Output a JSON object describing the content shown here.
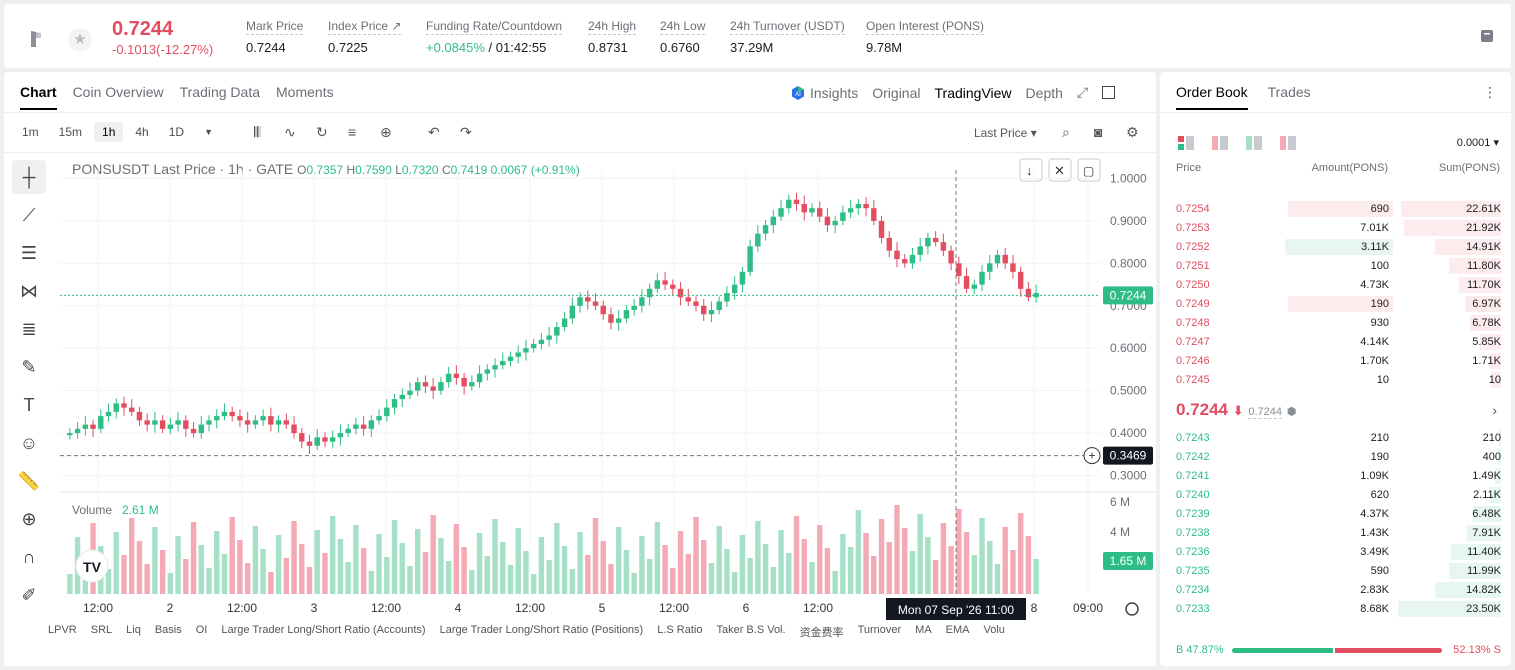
{
  "ticker": {
    "last_price": "0.7244",
    "change": "-0.1013(-12.27%)",
    "stats": [
      {
        "label": "Mark Price",
        "value": "0.7244"
      },
      {
        "label": "Index Price ↗",
        "value": "0.7225"
      },
      {
        "label": "Funding Rate/Countdown",
        "value_green": "+0.0845%",
        "value": " / 01:42:55"
      },
      {
        "label": "24h High",
        "value": "0.8731"
      },
      {
        "label": "24h Low",
        "value": "0.6760"
      },
      {
        "label": "24h Turnover (USDT)",
        "value": "37.29M"
      },
      {
        "label": "Open Interest (PONS)",
        "value": "9.78M"
      }
    ]
  },
  "chart_tabs": [
    "Chart",
    "Coin Overview",
    "Trading Data",
    "Moments"
  ],
  "view_tabs": {
    "insights": "Insights",
    "original": "Original",
    "tradingview": "TradingView",
    "depth": "Depth"
  },
  "timeframes": [
    "1m",
    "15m",
    "1h",
    "4h",
    "1D"
  ],
  "last_price_select": "Last Price",
  "legend": {
    "symbol": "PONSUSDT Last Price · 1h · GATE",
    "o_label": "O",
    "o": "0.7357",
    "h_label": "H",
    "h": "0.7590",
    "l_label": "L",
    "l": "0.7320",
    "c_label": "C",
    "c": "0.7419",
    "chg": "0.0067 (+0.91%)"
  },
  "volume_legend": {
    "label": "Volume",
    "value": "2.61 M"
  },
  "price_tag": "0.7244",
  "crosshair_tag": "0.3469",
  "volume_tag": "1.65 M",
  "crosshair_time": "Mon 07 Sep '26   11:00",
  "bottom_indicators": [
    "LPVR",
    "SRL",
    "Liq",
    "Basis",
    "OI",
    "Large Trader Long/Short Ratio (Accounts)",
    "Large Trader Long/Short Ratio (Positions)",
    "L.S Ratio",
    "Taker B.S Vol.",
    "资金费率",
    "Turnover",
    "MA",
    "EMA",
    "Volu"
  ],
  "chart_data": {
    "type": "candlestick",
    "y_ticks": [
      "1.0000",
      "0.9000",
      "0.8000",
      "0.7000",
      "0.6000",
      "0.5000",
      "0.4000",
      "0.3000"
    ],
    "y_range": [
      0.28,
      1.02
    ],
    "vol_ticks": [
      "6 M",
      "4 M"
    ],
    "x_ticks": [
      "12:00",
      "2",
      "12:00",
      "3",
      "12:00",
      "4",
      "12:00",
      "5",
      "12:00",
      "6",
      "12:00",
      "8",
      "09:00"
    ],
    "closes": [
      0.4,
      0.41,
      0.42,
      0.41,
      0.44,
      0.45,
      0.47,
      0.46,
      0.45,
      0.43,
      0.42,
      0.43,
      0.41,
      0.42,
      0.43,
      0.41,
      0.4,
      0.42,
      0.43,
      0.44,
      0.45,
      0.44,
      0.43,
      0.42,
      0.43,
      0.44,
      0.42,
      0.43,
      0.42,
      0.4,
      0.38,
      0.37,
      0.39,
      0.38,
      0.39,
      0.4,
      0.41,
      0.42,
      0.41,
      0.43,
      0.44,
      0.46,
      0.48,
      0.49,
      0.5,
      0.52,
      0.51,
      0.5,
      0.52,
      0.54,
      0.53,
      0.51,
      0.52,
      0.54,
      0.55,
      0.56,
      0.57,
      0.58,
      0.59,
      0.6,
      0.61,
      0.62,
      0.63,
      0.65,
      0.67,
      0.7,
      0.72,
      0.71,
      0.7,
      0.68,
      0.66,
      0.67,
      0.69,
      0.7,
      0.72,
      0.74,
      0.76,
      0.75,
      0.74,
      0.72,
      0.71,
      0.7,
      0.68,
      0.69,
      0.71,
      0.73,
      0.75,
      0.78,
      0.84,
      0.87,
      0.89,
      0.91,
      0.93,
      0.95,
      0.94,
      0.92,
      0.93,
      0.91,
      0.89,
      0.9,
      0.92,
      0.93,
      0.94,
      0.93,
      0.9,
      0.86,
      0.83,
      0.81,
      0.8,
      0.82,
      0.84,
      0.86,
      0.85,
      0.83,
      0.8,
      0.77,
      0.74,
      0.75,
      0.78,
      0.8,
      0.82,
      0.8,
      0.78,
      0.74,
      0.72,
      0.73
    ]
  },
  "order_book": {
    "tabs": [
      "Order Book",
      "Trades"
    ],
    "precision": "0.0001",
    "headers": {
      "price": "Price",
      "amount": "Amount(PONS)",
      "sum": "Sum(PONS)"
    },
    "asks": [
      {
        "p": "0.7254",
        "a": "690",
        "s": "22.61K",
        "w": 0.96,
        "aw": 0.35
      },
      {
        "p": "0.7253",
        "a": "7.01K",
        "s": "21.92K",
        "w": 0.93,
        "aw": 0
      },
      {
        "p": "0.7252",
        "a": "3.11K",
        "s": "14.91K",
        "w": 0.63,
        "aw": 0.36,
        "g": true
      },
      {
        "p": "0.7251",
        "a": "100",
        "s": "11.80K",
        "w": 0.5,
        "aw": 0
      },
      {
        "p": "0.7250",
        "a": "4.73K",
        "s": "11.70K",
        "w": 0.4,
        "aw": 0
      },
      {
        "p": "0.7249",
        "a": "190",
        "s": "6.97K",
        "w": 0.35,
        "aw": 0.35
      },
      {
        "p": "0.7248",
        "a": "930",
        "s": "6.78K",
        "w": 0.3,
        "aw": 0
      },
      {
        "p": "0.7247",
        "a": "4.14K",
        "s": "5.85K",
        "w": 0.2,
        "aw": 0
      },
      {
        "p": "0.7246",
        "a": "1.70K",
        "s": "1.71K",
        "w": 0.12,
        "aw": 0
      },
      {
        "p": "0.7245",
        "a": "10",
        "s": "10",
        "w": 0.1,
        "aw": 0
      }
    ],
    "mid_price": "0.7244",
    "mark": "0.7244",
    "bids": [
      {
        "p": "0.7243",
        "a": "210",
        "s": "210",
        "w": 0.02
      },
      {
        "p": "0.7242",
        "a": "190",
        "s": "400",
        "w": 0.03
      },
      {
        "p": "0.7241",
        "a": "1.09K",
        "s": "1.49K",
        "w": 0.06
      },
      {
        "p": "0.7240",
        "a": "620",
        "s": "2.11K",
        "w": 0.12
      },
      {
        "p": "0.7239",
        "a": "4.37K",
        "s": "6.48K",
        "w": 0.27
      },
      {
        "p": "0.7238",
        "a": "1.43K",
        "s": "7.91K",
        "w": 0.33
      },
      {
        "p": "0.7236",
        "a": "3.49K",
        "s": "11.40K",
        "w": 0.48
      },
      {
        "p": "0.7235",
        "a": "590",
        "s": "11.99K",
        "w": 0.5
      },
      {
        "p": "0.7234",
        "a": "2.83K",
        "s": "14.82K",
        "w": 0.63
      },
      {
        "p": "0.7233",
        "a": "8.68K",
        "s": "23.50K",
        "w": 0.99
      }
    ],
    "buy_ratio": "B 47.87%",
    "sell_ratio": "52.13% S",
    "buy_fraction": 0.4787
  },
  "colors": {
    "up": "#2ebd85",
    "down": "#e24d5f",
    "up_vol": "#a6e0c7",
    "down_vol": "#f3aab4"
  }
}
